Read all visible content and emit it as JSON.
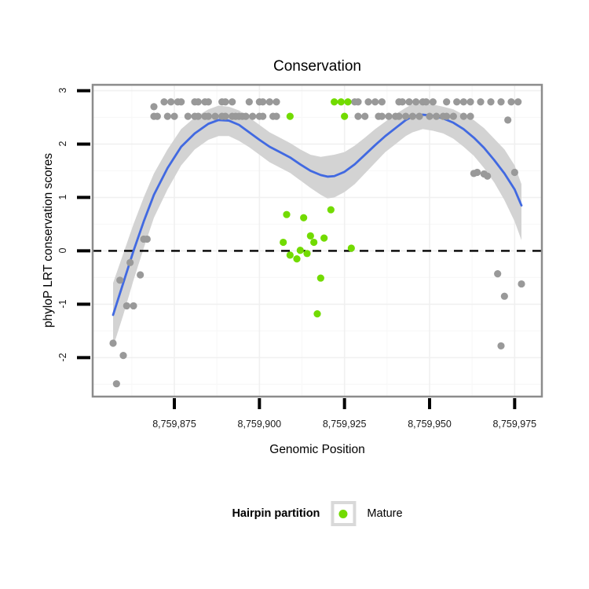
{
  "figure": {
    "title": "Conservation",
    "x_label": "Genomic Position",
    "y_label": "phyloP LRT conservation scores"
  },
  "legend": {
    "title": "Hairpin partition",
    "items": [
      {
        "label": "Mature",
        "color": "#72DB00"
      }
    ]
  },
  "colors": {
    "other_points": "#999999",
    "mature_points": "#72DB00",
    "smooth_line": "#4169E1",
    "confidence_band": "#D3D3D3",
    "zero_line": "#000000",
    "panel_border": "#8C8C8C",
    "grid_major": "#F0F0F0",
    "grid_minor": "#F8F8F8"
  },
  "chart_data": {
    "type": "scatter",
    "title": "Conservation",
    "xlabel": "Genomic Position",
    "ylabel": "phyloP LRT conservation scores",
    "xlim": [
      8759851,
      8759983
    ],
    "ylim": [
      -2.73,
      3.11
    ],
    "grid": "major+minor",
    "legend_position": "bottom",
    "x_ticks": {
      "values": [
        8759875,
        8759900,
        8759925,
        8759950,
        8759975
      ],
      "labels": [
        "8,759,875",
        "8,759,900",
        "8,759,925",
        "8,759,950",
        "8,759,975"
      ]
    },
    "y_ticks": {
      "values": [
        3,
        2,
        1,
        0,
        -1,
        -2
      ],
      "labels": [
        "3",
        "2",
        "1",
        "0",
        "-1",
        "-2"
      ]
    },
    "hline": {
      "y": 0,
      "style": "dashed",
      "color": "#000000"
    },
    "series": [
      {
        "name": "Other",
        "color": "#999999",
        "points": [
          [
            8759872,
            2.79
          ],
          [
            8759874,
            2.79
          ],
          [
            8759876,
            2.79
          ],
          [
            8759877,
            2.79
          ],
          [
            8759881,
            2.79
          ],
          [
            8759882,
            2.79
          ],
          [
            8759884,
            2.79
          ],
          [
            8759885,
            2.79
          ],
          [
            8759889,
            2.79
          ],
          [
            8759890,
            2.79
          ],
          [
            8759892,
            2.79
          ],
          [
            8759897,
            2.79
          ],
          [
            8759900,
            2.79
          ],
          [
            8759901,
            2.79
          ],
          [
            8759903,
            2.79
          ],
          [
            8759905,
            2.79
          ],
          [
            8759928,
            2.79
          ],
          [
            8759929,
            2.79
          ],
          [
            8759932,
            2.79
          ],
          [
            8759934,
            2.79
          ],
          [
            8759936,
            2.79
          ],
          [
            8759941,
            2.79
          ],
          [
            8759942,
            2.79
          ],
          [
            8759944,
            2.79
          ],
          [
            8759946,
            2.79
          ],
          [
            8759948,
            2.79
          ],
          [
            8759949,
            2.79
          ],
          [
            8759951,
            2.79
          ],
          [
            8759955,
            2.79
          ],
          [
            8759958,
            2.79
          ],
          [
            8759960,
            2.79
          ],
          [
            8759962,
            2.79
          ],
          [
            8759965,
            2.79
          ],
          [
            8759968,
            2.79
          ],
          [
            8759971,
            2.79
          ],
          [
            8759974,
            2.79
          ],
          [
            8759976,
            2.79
          ],
          [
            8759869,
            2.52
          ],
          [
            8759870,
            2.52
          ],
          [
            8759873,
            2.52
          ],
          [
            8759875,
            2.52
          ],
          [
            8759879,
            2.52
          ],
          [
            8759881,
            2.52
          ],
          [
            8759882,
            2.52
          ],
          [
            8759884,
            2.52
          ],
          [
            8759885,
            2.52
          ],
          [
            8759887,
            2.52
          ],
          [
            8759889,
            2.52
          ],
          [
            8759890,
            2.52
          ],
          [
            8759892,
            2.52
          ],
          [
            8759893,
            2.52
          ],
          [
            8759894,
            2.52
          ],
          [
            8759895,
            2.52
          ],
          [
            8759896,
            2.52
          ],
          [
            8759898,
            2.52
          ],
          [
            8759900,
            2.52
          ],
          [
            8759901,
            2.52
          ],
          [
            8759904,
            2.52
          ],
          [
            8759905,
            2.52
          ],
          [
            8759929,
            2.52
          ],
          [
            8759931,
            2.52
          ],
          [
            8759935,
            2.52
          ],
          [
            8759936,
            2.52
          ],
          [
            8759938,
            2.52
          ],
          [
            8759940,
            2.52
          ],
          [
            8759941,
            2.52
          ],
          [
            8759943,
            2.52
          ],
          [
            8759945,
            2.52
          ],
          [
            8759947,
            2.52
          ],
          [
            8759950,
            2.52
          ],
          [
            8759952,
            2.52
          ],
          [
            8759954,
            2.52
          ],
          [
            8759955,
            2.52
          ],
          [
            8759957,
            2.52
          ],
          [
            8759960,
            2.52
          ],
          [
            8759962,
            2.52
          ],
          [
            8759869,
            2.7
          ],
          [
            8759973,
            2.45
          ],
          [
            8759963,
            1.45
          ],
          [
            8759964,
            1.47
          ],
          [
            8759966,
            1.44
          ],
          [
            8759967,
            1.4
          ],
          [
            8759975,
            1.47
          ],
          [
            8759866,
            0.22
          ],
          [
            8759867,
            0.22
          ],
          [
            8759862,
            -0.22
          ],
          [
            8759865,
            -0.45
          ],
          [
            8759859,
            -0.55
          ],
          [
            8759861,
            -1.03
          ],
          [
            8759863,
            -1.03
          ],
          [
            8759857,
            -1.73
          ],
          [
            8759860,
            -1.96
          ],
          [
            8759858,
            -2.49
          ],
          [
            8759970,
            -0.43
          ],
          [
            8759977,
            -0.62
          ],
          [
            8759972,
            -0.85
          ],
          [
            8759971,
            -1.78
          ]
        ]
      },
      {
        "name": "Mature",
        "color": "#72DB00",
        "points": [
          [
            8759922,
            2.79
          ],
          [
            8759924,
            2.79
          ],
          [
            8759926,
            2.79
          ],
          [
            8759925,
            2.52
          ],
          [
            8759909,
            2.52
          ],
          [
            8759908,
            0.68
          ],
          [
            8759913,
            0.62
          ],
          [
            8759921,
            0.77
          ],
          [
            8759915,
            0.28
          ],
          [
            8759916,
            0.16
          ],
          [
            8759919,
            0.24
          ],
          [
            8759907,
            0.16
          ],
          [
            8759912,
            0.01
          ],
          [
            8759914,
            -0.05
          ],
          [
            8759909,
            -0.08
          ],
          [
            8759911,
            -0.15
          ],
          [
            8759927,
            0.05
          ],
          [
            8759918,
            -0.51
          ],
          [
            8759917,
            -1.18
          ]
        ]
      }
    ],
    "smooth": {
      "color": "#4169E1",
      "line": [
        [
          8759857,
          -1.2
        ],
        [
          8759860,
          -0.6
        ],
        [
          8759863,
          0.0
        ],
        [
          8759866,
          0.55
        ],
        [
          8759869,
          1.05
        ],
        [
          8759873,
          1.55
        ],
        [
          8759877,
          1.95
        ],
        [
          8759881,
          2.2
        ],
        [
          8759885,
          2.38
        ],
        [
          8759888,
          2.45
        ],
        [
          8759891,
          2.44
        ],
        [
          8759894,
          2.36
        ],
        [
          8759897,
          2.22
        ],
        [
          8759900,
          2.08
        ],
        [
          8759903,
          1.95
        ],
        [
          8759906,
          1.85
        ],
        [
          8759909,
          1.75
        ],
        [
          8759912,
          1.62
        ],
        [
          8759915,
          1.5
        ],
        [
          8759918,
          1.42
        ],
        [
          8759920,
          1.39
        ],
        [
          8759922,
          1.4
        ],
        [
          8759925,
          1.48
        ],
        [
          8759928,
          1.62
        ],
        [
          8759931,
          1.8
        ],
        [
          8759934,
          1.98
        ],
        [
          8759937,
          2.15
        ],
        [
          8759940,
          2.3
        ],
        [
          8759943,
          2.45
        ],
        [
          8759945,
          2.52
        ],
        [
          8759948,
          2.55
        ],
        [
          8759951,
          2.53
        ],
        [
          8759954,
          2.48
        ],
        [
          8759957,
          2.4
        ],
        [
          8759960,
          2.28
        ],
        [
          8759963,
          2.12
        ],
        [
          8759966,
          1.93
        ],
        [
          8759969,
          1.7
        ],
        [
          8759972,
          1.45
        ],
        [
          8759975,
          1.15
        ],
        [
          8759977,
          0.85
        ]
      ],
      "band": {
        "color": "#D3D3D3",
        "points": [
          [
            8759857,
            -1.8,
            -0.6
          ],
          [
            8759860,
            -1.2,
            -0.05
          ],
          [
            8759863,
            -0.55,
            0.5
          ],
          [
            8759866,
            0.05,
            1.0
          ],
          [
            8759869,
            0.62,
            1.45
          ],
          [
            8759873,
            1.15,
            1.9
          ],
          [
            8759877,
            1.6,
            2.28
          ],
          [
            8759881,
            1.9,
            2.5
          ],
          [
            8759885,
            2.08,
            2.65
          ],
          [
            8759888,
            2.15,
            2.72
          ],
          [
            8759891,
            2.15,
            2.7
          ],
          [
            8759894,
            2.06,
            2.63
          ],
          [
            8759897,
            1.94,
            2.5
          ],
          [
            8759900,
            1.8,
            2.36
          ],
          [
            8759903,
            1.66,
            2.22
          ],
          [
            8759906,
            1.56,
            2.12
          ],
          [
            8759909,
            1.46,
            2.02
          ],
          [
            8759912,
            1.32,
            1.9
          ],
          [
            8759915,
            1.18,
            1.8
          ],
          [
            8759918,
            1.05,
            1.76
          ],
          [
            8759920,
            0.98,
            1.78
          ],
          [
            8759922,
            1.0,
            1.8
          ],
          [
            8759925,
            1.1,
            1.85
          ],
          [
            8759928,
            1.25,
            1.97
          ],
          [
            8759931,
            1.45,
            2.12
          ],
          [
            8759934,
            1.65,
            2.28
          ],
          [
            8759937,
            1.85,
            2.42
          ],
          [
            8759940,
            2.0,
            2.56
          ],
          [
            8759943,
            2.15,
            2.68
          ],
          [
            8759945,
            2.22,
            2.75
          ],
          [
            8759948,
            2.28,
            2.75
          ],
          [
            8759951,
            2.25,
            2.74
          ],
          [
            8759954,
            2.2,
            2.7
          ],
          [
            8759957,
            2.1,
            2.65
          ],
          [
            8759960,
            1.95,
            2.55
          ],
          [
            8759963,
            1.78,
            2.45
          ],
          [
            8759966,
            1.55,
            2.3
          ],
          [
            8759969,
            1.28,
            2.1
          ],
          [
            8759972,
            0.95,
            1.9
          ],
          [
            8759975,
            0.55,
            1.6
          ],
          [
            8759977,
            0.2,
            1.25
          ]
        ]
      }
    }
  }
}
